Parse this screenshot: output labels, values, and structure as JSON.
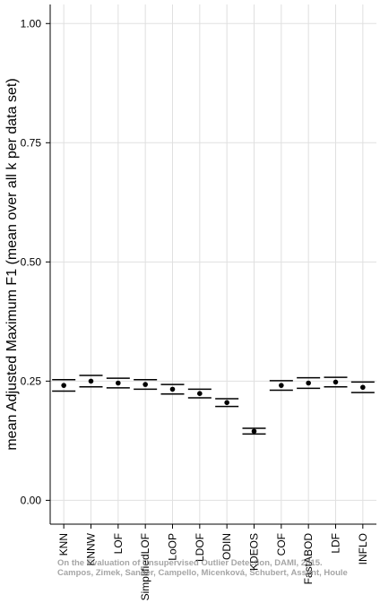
{
  "chart_data": {
    "type": "errorbar",
    "ylabel": "mean Adjusted Maximum F1 (mean over all k per data set)",
    "categories": [
      "KNN",
      "KNNW",
      "LOF",
      "SimplifiedLOF",
      "LoOP",
      "LDOF",
      "ODIN",
      "KDEOS",
      "COF",
      "FastABOD",
      "LDF",
      "INFLO"
    ],
    "values": [
      0.241,
      0.25,
      0.246,
      0.243,
      0.233,
      0.224,
      0.205,
      0.145,
      0.241,
      0.246,
      0.248,
      0.237
    ],
    "errors": [
      0.012,
      0.012,
      0.01,
      0.01,
      0.01,
      0.009,
      0.008,
      0.006,
      0.01,
      0.011,
      0.01,
      0.011
    ],
    "color": "#000000",
    "ylim": [
      -0.05,
      1.04
    ],
    "yticks": [
      {
        "value": 0,
        "label": "0.00"
      },
      0.25,
      {
        "value": 0.5,
        "label": "0.50"
      },
      0.75,
      {
        "value": 1,
        "label": "1.00"
      }
    ],
    "grid": true,
    "annotations": [
      "On the Evaluation of Unsupervised Outlier Detection, DAMI, 2015.",
      "Campos, Zimek, Sander, Campello, Micenková, Schubert, Assent, Houle"
    ]
  }
}
